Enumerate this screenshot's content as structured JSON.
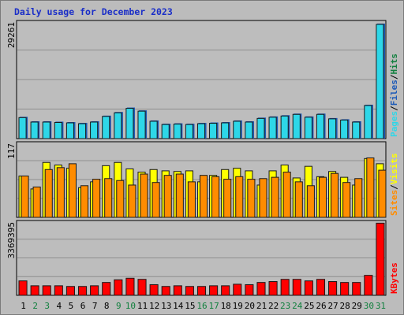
{
  "title": "Daily usage for December 2023",
  "chart_data": [
    {
      "type": "bar",
      "categories": [
        "1",
        "2",
        "3",
        "4",
        "5",
        "6",
        "7",
        "8",
        "9",
        "10",
        "11",
        "12",
        "13",
        "14",
        "15",
        "16",
        "17",
        "18",
        "19",
        "20",
        "21",
        "22",
        "23",
        "24",
        "25",
        "26",
        "27",
        "28",
        "29",
        "30",
        "31"
      ],
      "weekend_categories": [
        "2",
        "3",
        "9",
        "10",
        "16",
        "17",
        "23",
        "24",
        "30",
        "31"
      ],
      "ylim": [
        0,
        29261
      ],
      "y_tick_label": "29261",
      "legend": [
        "Pages",
        "Files",
        "Hits"
      ],
      "series": [
        {
          "name": "Pages",
          "color": "#2ed7e8",
          "values": [
            5200,
            4100,
            4100,
            4000,
            3900,
            3700,
            4100,
            5500,
            6400,
            7500,
            6800,
            4300,
            3500,
            3600,
            3500,
            3700,
            3800,
            3900,
            4300,
            4100,
            5000,
            5300,
            5600,
            6000,
            5300,
            6000,
            4900,
            4600,
            4100,
            8200,
            28300
          ]
        },
        {
          "name": "Files",
          "color": "#1c5ab8",
          "values": [
            5200,
            4100,
            4100,
            4000,
            3900,
            3700,
            4100,
            5500,
            6400,
            7500,
            6800,
            4300,
            3500,
            3600,
            3500,
            3700,
            3800,
            3900,
            4300,
            4100,
            5000,
            5300,
            5600,
            6000,
            5300,
            6000,
            4900,
            4600,
            4100,
            8200,
            28300
          ]
        },
        {
          "name": "Hits",
          "color": "#12803f",
          "values": [
            5200,
            4100,
            4100,
            4000,
            3900,
            3700,
            4100,
            5500,
            6400,
            7500,
            6800,
            4300,
            3500,
            3600,
            3500,
            3700,
            3800,
            3900,
            4300,
            4100,
            5000,
            5300,
            5600,
            6000,
            5300,
            6000,
            4900,
            4600,
            4100,
            8200,
            28300
          ]
        }
      ]
    },
    {
      "type": "bar",
      "categories": [
        "1",
        "2",
        "3",
        "4",
        "5",
        "6",
        "7",
        "8",
        "9",
        "10",
        "11",
        "12",
        "13",
        "14",
        "15",
        "16",
        "17",
        "18",
        "19",
        "20",
        "21",
        "22",
        "23",
        "24",
        "25",
        "26",
        "27",
        "28",
        "29",
        "30",
        "31"
      ],
      "ylim": [
        0,
        117
      ],
      "y_tick_label": "117",
      "legend": [
        "Sites",
        "Visits"
      ],
      "series": [
        {
          "name": "Visits",
          "color": "#ffff00",
          "values": [
            64,
            44,
            85,
            81,
            76,
            46,
            55,
            80,
            85,
            75,
            70,
            74,
            72,
            71,
            72,
            55,
            65,
            74,
            76,
            72,
            50,
            72,
            81,
            61,
            79,
            63,
            71,
            62,
            50,
            91,
            83
          ]
        },
        {
          "name": "Sites",
          "color": "#ff8c00",
          "values": [
            64,
            47,
            74,
            77,
            83,
            49,
            59,
            60,
            57,
            50,
            67,
            54,
            65,
            67,
            55,
            65,
            63,
            59,
            63,
            59,
            60,
            62,
            70,
            55,
            49,
            62,
            68,
            54,
            60,
            92,
            73
          ]
        }
      ]
    },
    {
      "type": "bar",
      "categories": [
        "1",
        "2",
        "3",
        "4",
        "5",
        "6",
        "7",
        "8",
        "9",
        "10",
        "11",
        "12",
        "13",
        "14",
        "15",
        "16",
        "17",
        "18",
        "19",
        "20",
        "21",
        "22",
        "23",
        "24",
        "25",
        "26",
        "27",
        "28",
        "29",
        "30",
        "31"
      ],
      "ylim": [
        0,
        3369395
      ],
      "y_tick_label": "3369395",
      "legend": [
        "KBytes"
      ],
      "series": [
        {
          "name": "KBytes",
          "color": "#ff0000",
          "values": [
            650000,
            430000,
            430000,
            430000,
            400000,
            400000,
            430000,
            580000,
            700000,
            770000,
            720000,
            480000,
            400000,
            430000,
            400000,
            400000,
            430000,
            430000,
            500000,
            480000,
            580000,
            620000,
            720000,
            720000,
            650000,
            720000,
            620000,
            580000,
            580000,
            900000,
            3250000
          ]
        }
      ]
    }
  ]
}
